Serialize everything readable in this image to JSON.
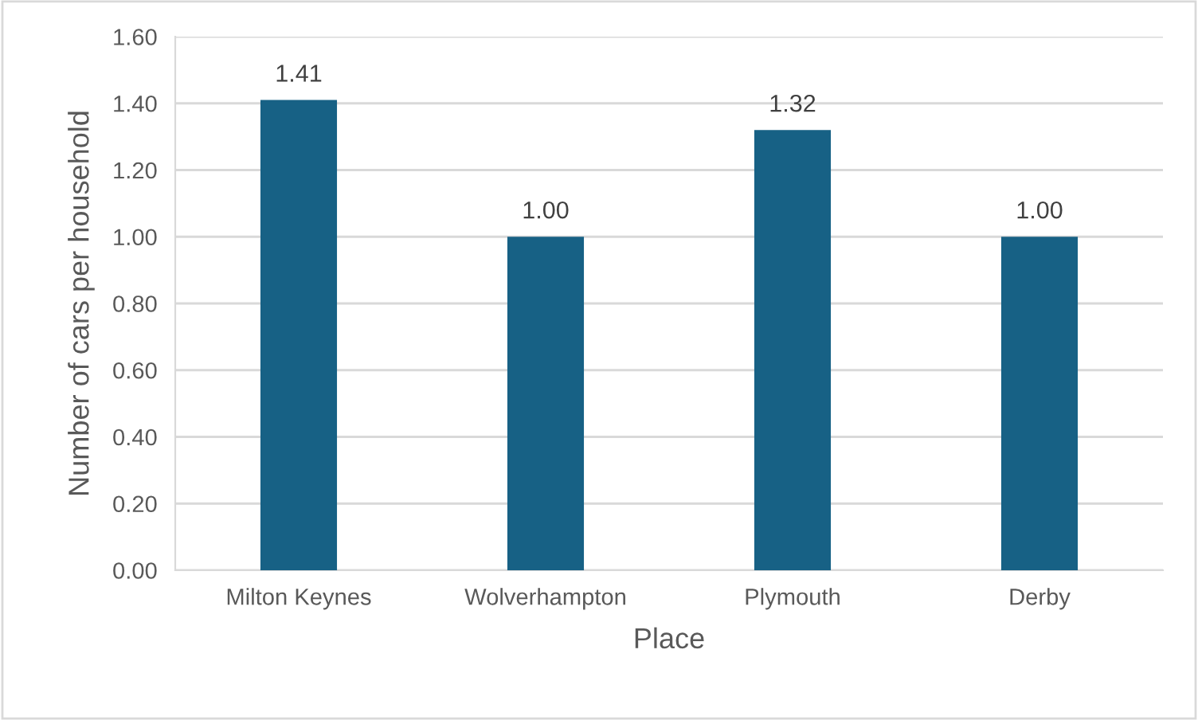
{
  "chart_data": {
    "type": "bar",
    "xlabel": "Place",
    "ylabel": "Number of cars per household",
    "categories": [
      "Milton Keynes",
      "Wolverhampton",
      "Plymouth",
      "Derby"
    ],
    "values": [
      1.41,
      1.0,
      1.32,
      1.0
    ],
    "value_labels": [
      "1.41",
      "1.00",
      "1.32",
      "1.00"
    ],
    "color": "#176185",
    "ylim": [
      0,
      1.6
    ],
    "yticks": [
      {
        "value": 0,
        "label": "0.00"
      },
      {
        "value": 0.2,
        "label": "0.20"
      },
      {
        "value": 0.4,
        "label": "0.40"
      },
      {
        "value": 0.6,
        "label": "0.60"
      },
      {
        "value": 0.8,
        "label": "0.80"
      },
      {
        "value": 1.0,
        "label": "1.00"
      },
      {
        "value": 1.2,
        "label": "1.20"
      },
      {
        "value": 1.4,
        "label": "1.40"
      },
      {
        "value": 1.6,
        "label": "1.60"
      }
    ],
    "grid": "y",
    "legend": false
  }
}
